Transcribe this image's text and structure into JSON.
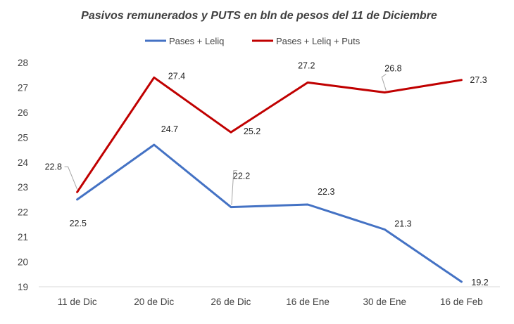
{
  "chart_data": {
    "type": "line",
    "title": "Pasivos remunerados y PUTS en bln de pesos del 11 de Diciembre",
    "categories": [
      "11 de Dic",
      "20 de Dic",
      "26 de Dic",
      "16 de Ene",
      "30 de Ene",
      "16 de Feb"
    ],
    "series": [
      {
        "name": "Pases + Leliq",
        "color": "#4472C4",
        "values": [
          22.5,
          24.7,
          22.2,
          22.3,
          21.3,
          19.2
        ],
        "labels": [
          "22.5",
          "24.7",
          "22.2",
          "22.3",
          "21.3",
          "19.2"
        ]
      },
      {
        "name": "Pases + Leliq + Puts",
        "color": "#C00000",
        "values": [
          22.8,
          27.4,
          25.2,
          27.2,
          26.8,
          27.3
        ],
        "labels": [
          "22.8",
          "27.4",
          "25.2",
          "27.2",
          "26.8",
          "27.3"
        ]
      }
    ],
    "ylim": [
      19,
      28
    ],
    "yticks": [
      "19",
      "20",
      "21",
      "22",
      "23",
      "24",
      "25",
      "26",
      "27",
      "28"
    ],
    "legend_position": "top",
    "grid": false
  }
}
